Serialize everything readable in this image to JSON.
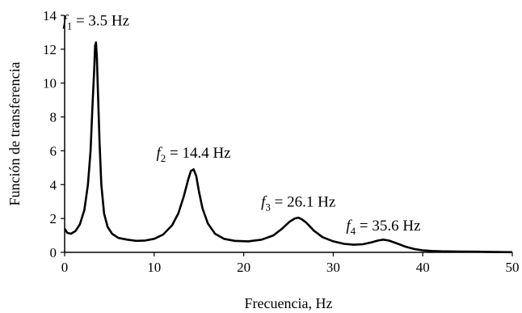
{
  "chart_data": {
    "type": "line",
    "xlabel": "Frecuencia, Hz",
    "ylabel": "Función de transferencia",
    "xlim": [
      0,
      50
    ],
    "ylim": [
      0,
      14
    ],
    "xticks": [
      0,
      10,
      20,
      30,
      40,
      50
    ],
    "yticks": [
      0,
      2,
      4,
      6,
      8,
      10,
      12,
      14
    ],
    "grid": false,
    "series": [
      {
        "color": "#000000",
        "x": [
          0,
          0.3,
          0.7,
          1.2,
          1.7,
          2.2,
          2.6,
          2.9,
          3.1,
          3.3,
          3.4,
          3.5,
          3.6,
          3.7,
          3.9,
          4.1,
          4.4,
          4.8,
          5.3,
          6,
          7,
          8,
          9,
          10,
          11,
          12,
          12.7,
          13.3,
          13.8,
          14.1,
          14.4,
          14.7,
          15,
          15.4,
          16,
          16.8,
          17.8,
          19,
          20.5,
          22,
          23.3,
          24.3,
          25.1,
          25.7,
          26.1,
          26.5,
          27,
          27.8,
          28.8,
          30,
          31.2,
          32.3,
          33.3,
          34.2,
          35,
          35.6,
          36.2,
          37,
          38,
          39,
          40,
          41,
          42,
          44,
          46,
          48,
          50
        ],
        "y": [
          1.4,
          1.15,
          1.1,
          1.25,
          1.65,
          2.5,
          4.0,
          6.0,
          8.5,
          10.8,
          12.2,
          12.4,
          11.5,
          9.8,
          6.5,
          4.0,
          2.3,
          1.5,
          1.1,
          0.85,
          0.75,
          0.68,
          0.7,
          0.8,
          1.05,
          1.6,
          2.3,
          3.3,
          4.3,
          4.8,
          4.9,
          4.5,
          3.6,
          2.6,
          1.7,
          1.1,
          0.8,
          0.68,
          0.65,
          0.75,
          1.0,
          1.4,
          1.8,
          2.0,
          2.05,
          1.95,
          1.75,
          1.3,
          0.9,
          0.65,
          0.5,
          0.45,
          0.48,
          0.58,
          0.7,
          0.75,
          0.7,
          0.55,
          0.35,
          0.2,
          0.12,
          0.08,
          0.06,
          0.05,
          0.04,
          0.02,
          0.01
        ]
      }
    ],
    "annotations": [
      {
        "f": "f",
        "sub": "1",
        "rest": " = 3.5 Hz",
        "x": 3.5,
        "y": 13.4
      },
      {
        "f": "f",
        "sub": "2",
        "rest": " = 14.4 Hz",
        "x": 14.4,
        "y": 5.6
      },
      {
        "f": "f",
        "sub": "3",
        "rest": " = 26.1 Hz",
        "x": 26.1,
        "y": 2.7
      },
      {
        "f": "f",
        "sub": "4",
        "rest": " = 35.6 Hz",
        "x": 35.6,
        "y": 1.3
      }
    ]
  }
}
